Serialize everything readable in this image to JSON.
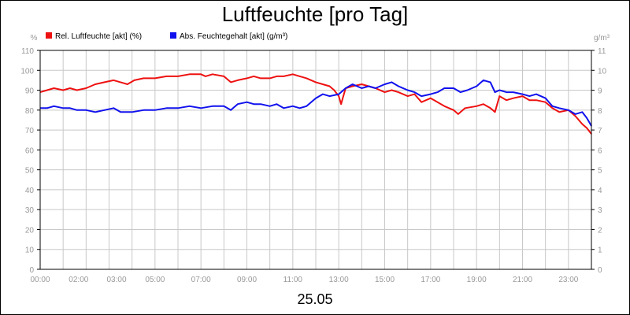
{
  "chart_data": {
    "type": "line",
    "title": "Luftfeuchte [pro Tag]",
    "date_label": "25.05",
    "y_left": {
      "unit": "%",
      "min": 0,
      "max": 110,
      "ticks": [
        0,
        10,
        20,
        30,
        40,
        50,
        60,
        70,
        80,
        90,
        100,
        110
      ]
    },
    "y_right": {
      "unit": "g/m³",
      "min": 0,
      "max": 11,
      "ticks": [
        0,
        1,
        2,
        3,
        4,
        5,
        6,
        7,
        8,
        9,
        10,
        11
      ]
    },
    "x_range_hours": [
      0,
      24
    ],
    "x_ticks": [
      {
        "h": 0,
        "label": "00:00"
      },
      {
        "h": 2,
        "label": "02:00"
      },
      {
        "h": 3,
        "label": "03:00"
      },
      {
        "h": 5,
        "label": "05:00"
      },
      {
        "h": 7,
        "label": "07:00"
      },
      {
        "h": 9,
        "label": "09:00"
      },
      {
        "h": 11,
        "label": "11:00"
      },
      {
        "h": 13,
        "label": "13:00"
      },
      {
        "h": 15,
        "label": "15:00"
      },
      {
        "h": 17,
        "label": "17:00"
      },
      {
        "h": 19,
        "label": "19:00"
      },
      {
        "h": 21,
        "label": "21:00"
      },
      {
        "h": 23,
        "label": "23:00"
      }
    ],
    "grid": true,
    "legend_position": "top-left",
    "series": [
      {
        "name": "Rel. Luftfeuchte [akt] (%)",
        "axis": "left",
        "color": "#ee1111",
        "points": [
          [
            0.0,
            89
          ],
          [
            0.3,
            90
          ],
          [
            0.6,
            91
          ],
          [
            1.0,
            90
          ],
          [
            1.3,
            91
          ],
          [
            1.6,
            90
          ],
          [
            2.0,
            91
          ],
          [
            2.4,
            93
          ],
          [
            2.8,
            94
          ],
          [
            3.2,
            95
          ],
          [
            3.5,
            94
          ],
          [
            3.8,
            93
          ],
          [
            4.1,
            95
          ],
          [
            4.5,
            96
          ],
          [
            5.0,
            96
          ],
          [
            5.5,
            97
          ],
          [
            6.0,
            97
          ],
          [
            6.5,
            98
          ],
          [
            7.0,
            98
          ],
          [
            7.2,
            97
          ],
          [
            7.5,
            98
          ],
          [
            8.0,
            97
          ],
          [
            8.3,
            94
          ],
          [
            8.6,
            95
          ],
          [
            9.0,
            96
          ],
          [
            9.3,
            97
          ],
          [
            9.6,
            96
          ],
          [
            10.0,
            96
          ],
          [
            10.3,
            97
          ],
          [
            10.6,
            97
          ],
          [
            11.0,
            98
          ],
          [
            11.3,
            97
          ],
          [
            11.6,
            96
          ],
          [
            12.0,
            94
          ],
          [
            12.3,
            93
          ],
          [
            12.6,
            92
          ],
          [
            12.8,
            90
          ],
          [
            13.0,
            87
          ],
          [
            13.1,
            83
          ],
          [
            13.3,
            91
          ],
          [
            13.6,
            92
          ],
          [
            14.0,
            93
          ],
          [
            14.3,
            92
          ],
          [
            14.6,
            91
          ],
          [
            15.0,
            89
          ],
          [
            15.3,
            90
          ],
          [
            15.6,
            89
          ],
          [
            16.0,
            87
          ],
          [
            16.3,
            88
          ],
          [
            16.6,
            84
          ],
          [
            17.0,
            86
          ],
          [
            17.3,
            84
          ],
          [
            17.6,
            82
          ],
          [
            18.0,
            80
          ],
          [
            18.2,
            78
          ],
          [
            18.5,
            81
          ],
          [
            19.0,
            82
          ],
          [
            19.3,
            83
          ],
          [
            19.6,
            81
          ],
          [
            19.8,
            79
          ],
          [
            20.0,
            87
          ],
          [
            20.3,
            85
          ],
          [
            20.6,
            86
          ],
          [
            21.0,
            87
          ],
          [
            21.3,
            85
          ],
          [
            21.6,
            85
          ],
          [
            22.0,
            84
          ],
          [
            22.3,
            81
          ],
          [
            22.6,
            79
          ],
          [
            23.0,
            80
          ],
          [
            23.3,
            77
          ],
          [
            23.6,
            73
          ],
          [
            23.8,
            71
          ],
          [
            24.0,
            68
          ]
        ]
      },
      {
        "name": "Abs. Feuchtegehalt [akt] (g/m³)",
        "axis": "right",
        "color": "#1111ee",
        "points": [
          [
            0.0,
            8.1
          ],
          [
            0.3,
            8.1
          ],
          [
            0.6,
            8.2
          ],
          [
            1.0,
            8.1
          ],
          [
            1.3,
            8.1
          ],
          [
            1.6,
            8.0
          ],
          [
            2.0,
            8.0
          ],
          [
            2.4,
            7.9
          ],
          [
            2.8,
            8.0
          ],
          [
            3.2,
            8.1
          ],
          [
            3.5,
            7.9
          ],
          [
            4.0,
            7.9
          ],
          [
            4.5,
            8.0
          ],
          [
            5.0,
            8.0
          ],
          [
            5.5,
            8.1
          ],
          [
            6.0,
            8.1
          ],
          [
            6.5,
            8.2
          ],
          [
            7.0,
            8.1
          ],
          [
            7.5,
            8.2
          ],
          [
            8.0,
            8.2
          ],
          [
            8.3,
            8.0
          ],
          [
            8.6,
            8.3
          ],
          [
            9.0,
            8.4
          ],
          [
            9.3,
            8.3
          ],
          [
            9.6,
            8.3
          ],
          [
            10.0,
            8.2
          ],
          [
            10.3,
            8.3
          ],
          [
            10.6,
            8.1
          ],
          [
            11.0,
            8.2
          ],
          [
            11.3,
            8.1
          ],
          [
            11.6,
            8.2
          ],
          [
            12.0,
            8.6
          ],
          [
            12.3,
            8.8
          ],
          [
            12.6,
            8.7
          ],
          [
            13.0,
            8.8
          ],
          [
            13.3,
            9.1
          ],
          [
            13.6,
            9.3
          ],
          [
            14.0,
            9.1
          ],
          [
            14.3,
            9.2
          ],
          [
            14.6,
            9.1
          ],
          [
            15.0,
            9.3
          ],
          [
            15.3,
            9.4
          ],
          [
            15.6,
            9.2
          ],
          [
            16.0,
            9.0
          ],
          [
            16.3,
            8.9
          ],
          [
            16.6,
            8.7
          ],
          [
            17.0,
            8.8
          ],
          [
            17.3,
            8.9
          ],
          [
            17.6,
            9.1
          ],
          [
            18.0,
            9.1
          ],
          [
            18.3,
            8.9
          ],
          [
            18.6,
            9.0
          ],
          [
            19.0,
            9.2
          ],
          [
            19.3,
            9.5
          ],
          [
            19.6,
            9.4
          ],
          [
            19.8,
            8.9
          ],
          [
            20.0,
            9.0
          ],
          [
            20.3,
            8.9
          ],
          [
            20.6,
            8.9
          ],
          [
            21.0,
            8.8
          ],
          [
            21.3,
            8.7
          ],
          [
            21.6,
            8.8
          ],
          [
            22.0,
            8.6
          ],
          [
            22.3,
            8.2
          ],
          [
            22.6,
            8.1
          ],
          [
            23.0,
            8.0
          ],
          [
            23.3,
            7.8
          ],
          [
            23.6,
            7.9
          ],
          [
            23.8,
            7.6
          ],
          [
            24.0,
            7.2
          ]
        ]
      }
    ]
  }
}
